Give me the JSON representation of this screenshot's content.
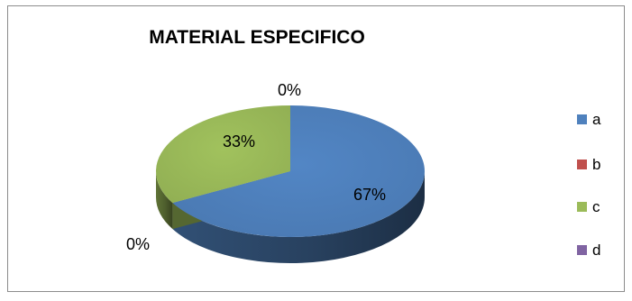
{
  "chart_data": {
    "type": "pie",
    "title": "MATERIAL ESPECIFICO",
    "categories": [
      "a",
      "b",
      "c",
      "d"
    ],
    "values": [
      67,
      0,
      33,
      0
    ],
    "labels": [
      "67%",
      "0%",
      "33%",
      "0%"
    ],
    "colors": [
      "#4f81bd",
      "#c0504d",
      "#9bbb59",
      "#8064a2"
    ],
    "legend_position": "right",
    "style": "3d"
  }
}
